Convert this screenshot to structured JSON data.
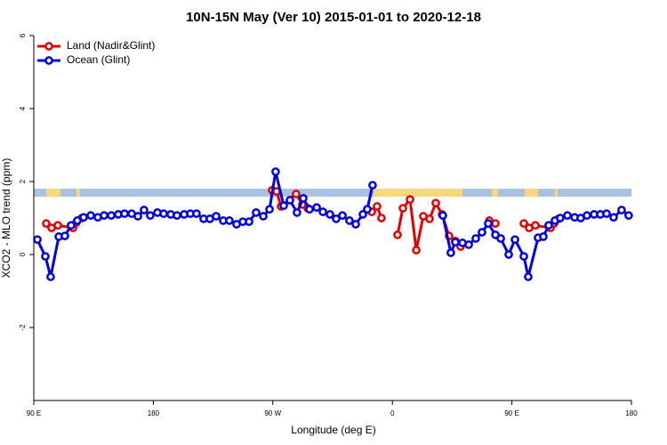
{
  "chart_data": {
    "type": "line",
    "title": "10N-15N May (Ver 10)   2015-01-01 to 2020-12-18",
    "xlabel": "Longitude (deg E)",
    "ylabel": "XCO2 - MLO trend (ppm)",
    "xlim": [
      90,
      540
    ],
    "ylim": [
      -4,
      6
    ],
    "xticks": [
      {
        "value": 90,
        "label": "90 E"
      },
      180,
      {
        "value": 270,
        "label": "90 W"
      },
      {
        "value": 360,
        "label": "0"
      },
      {
        "value": 450,
        "label": "90 E"
      },
      {
        "value": 540,
        "label": "180"
      }
    ],
    "yticks": [
      -2,
      0,
      2,
      4,
      6
    ],
    "legend": "top-left",
    "series": [
      {
        "name": "Land (Nadir&Glint)",
        "color": "#e00000",
        "x": [
          99.4,
          103.4,
          108.1,
          119.5,
          122.1,
          126.2,
          null,
          269.5,
          272.8,
          276.2,
          287.5,
          292.2,
          296.2,
          null,
          344.5,
          348.5,
          351.8,
          null,
          363.9,
          367.9,
          373.3,
          378.0,
          383.3,
          388.0,
          392.7,
          397.4,
          402.7,
          407.4,
          411.4,
          null,
          433.0,
          437.6,
          null,
          459.0,
          463.0,
          467.7,
          479.1,
          481.7,
          485.1
        ],
        "values": [
          0.85,
          0.73,
          0.8,
          0.73,
          0.88,
          1.0,
          null,
          1.76,
          1.73,
          1.32,
          1.66,
          1.37,
          1.27,
          null,
          1.17,
          1.32,
          1.0,
          null,
          0.54,
          1.27,
          1.51,
          0.12,
          1.05,
          0.98,
          1.41,
          1.1,
          0.51,
          0.37,
          0.22,
          null,
          0.93,
          0.85,
          null,
          0.85,
          0.73,
          0.8,
          0.73,
          0.85,
          0.98
        ]
      },
      {
        "name": "Ocean (Glint)",
        "color": "#0000e0",
        "x": [
          92.7,
          98.7,
          102.7,
          108.8,
          113.4,
          118.1,
          122.8,
          127.5,
          132.9,
          138.2,
          142.9,
          148.3,
          153.6,
          158.3,
          163.7,
          168.4,
          173.0,
          177.7,
          183.1,
          187.8,
          193.1,
          197.8,
          203.2,
          207.9,
          212.5,
          217.9,
          222.6,
          227.3,
          232.6,
          237.3,
          242.7,
          247.4,
          252.1,
          257.4,
          262.8,
          267.5,
          272.1,
          278.2,
          282.9,
          288.2,
          292.9,
          297.6,
          303.0,
          307.7,
          313.0,
          317.7,
          322.4,
          327.7,
          332.4,
          337.8,
          341.1,
          345.1,
          null,
          398.0,
          404.0,
          407.4,
          412.8,
          417.5,
          422.8,
          427.5,
          432.2,
          437.6,
          441.6,
          447.6,
          452.3,
          459.0,
          462.3,
          469.7,
          473.7,
          477.7,
          482.4,
          486.4,
          491.8,
          497.2,
          501.8,
          506.5,
          511.9,
          516.6,
          521.3,
          526.6,
          532.6,
          537.9
        ],
        "values": [
          0.41,
          -0.05,
          -0.61,
          0.49,
          0.51,
          0.8,
          0.93,
          1.02,
          1.07,
          1.02,
          1.07,
          1.07,
          1.1,
          1.12,
          1.12,
          1.05,
          1.22,
          1.07,
          1.15,
          1.12,
          1.1,
          1.07,
          1.1,
          1.12,
          1.12,
          0.98,
          0.98,
          1.05,
          0.93,
          0.93,
          0.83,
          0.9,
          0.9,
          1.15,
          1.05,
          1.24,
          2.27,
          1.34,
          1.49,
          1.15,
          1.54,
          1.24,
          1.29,
          1.17,
          1.1,
          0.98,
          1.07,
          0.93,
          0.83,
          1.1,
          1.24,
          1.9,
          null,
          1.07,
          0.05,
          0.34,
          0.32,
          0.27,
          0.44,
          0.61,
          0.85,
          0.54,
          0.44,
          0.0,
          0.41,
          -0.05,
          -0.61,
          0.46,
          0.49,
          0.8,
          0.93,
          1.0,
          1.07,
          1.02,
          1.0,
          1.07,
          1.1,
          1.1,
          1.12,
          1.02,
          1.22,
          1.07
        ]
      }
    ]
  }
}
